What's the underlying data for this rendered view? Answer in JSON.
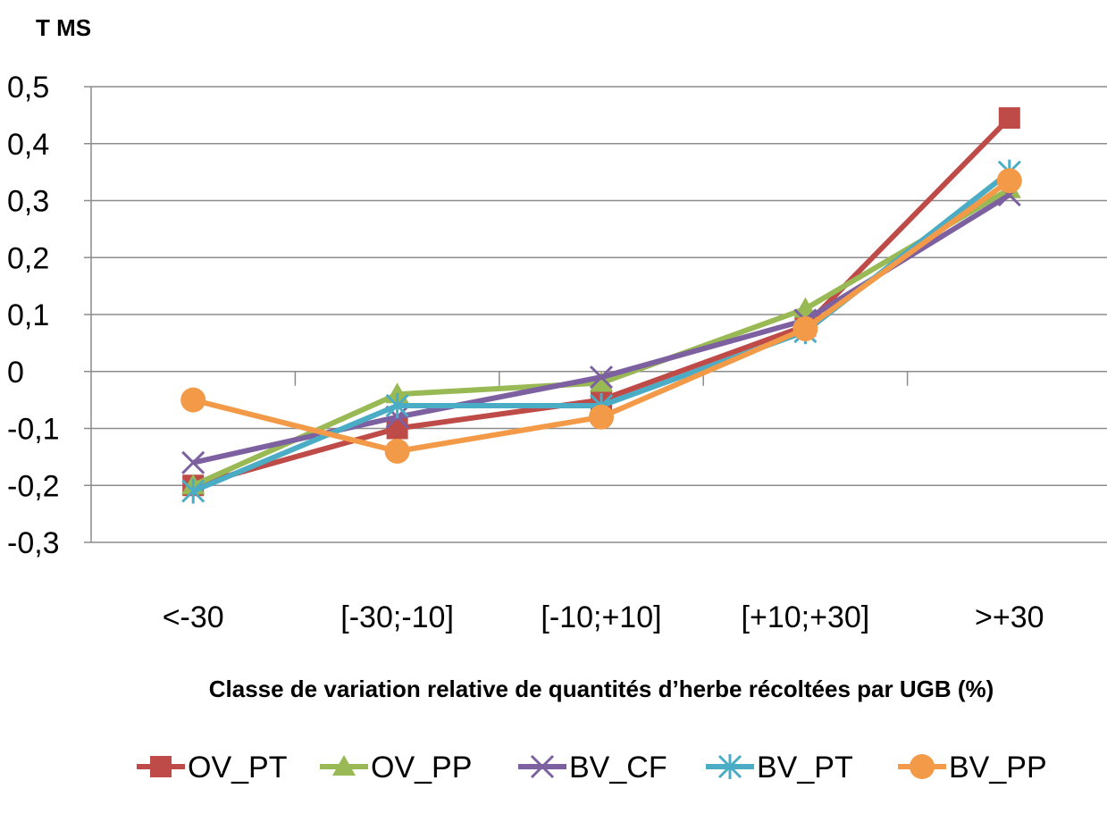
{
  "chart_data": {
    "type": "line",
    "ylabel": "T MS",
    "xlabel": "Classe de variation relative de quantités d’herbe récoltées par UGB (%)",
    "categories": [
      "<-30",
      "[-30;-10]",
      "[-10;+10]",
      "[+10;+30]",
      ">+30"
    ],
    "ylim": [
      -0.3,
      0.5
    ],
    "yticks": [
      0.5,
      0.4,
      0.3,
      0.2,
      0.1,
      0,
      -0.1,
      -0.2,
      -0.3
    ],
    "ytick_labels": [
      "0,5",
      "0,4",
      "0,3",
      "0,2",
      "0,1",
      "0",
      "-0,1",
      "-0,2",
      "-0,3"
    ],
    "grid": true,
    "legend_position": "bottom",
    "series": [
      {
        "name": "OV_PT",
        "color": "#be4b48",
        "marker": "square",
        "values": [
          -0.2,
          -0.1,
          -0.05,
          0.08,
          0.445
        ]
      },
      {
        "name": "OV_PP",
        "color": "#98b954",
        "marker": "triangle",
        "values": [
          -0.2,
          -0.04,
          -0.02,
          0.11,
          0.32
        ]
      },
      {
        "name": "BV_CF",
        "color": "#7d60a0",
        "marker": "x",
        "values": [
          -0.16,
          -0.08,
          -0.01,
          0.09,
          0.31
        ]
      },
      {
        "name": "BV_PT",
        "color": "#4bacc6",
        "marker": "star",
        "values": [
          -0.21,
          -0.06,
          -0.06,
          0.07,
          0.35
        ]
      },
      {
        "name": "BV_PP",
        "color": "#f39a48",
        "marker": "circle",
        "values": [
          -0.05,
          -0.14,
          -0.08,
          0.075,
          0.335
        ]
      }
    ]
  }
}
